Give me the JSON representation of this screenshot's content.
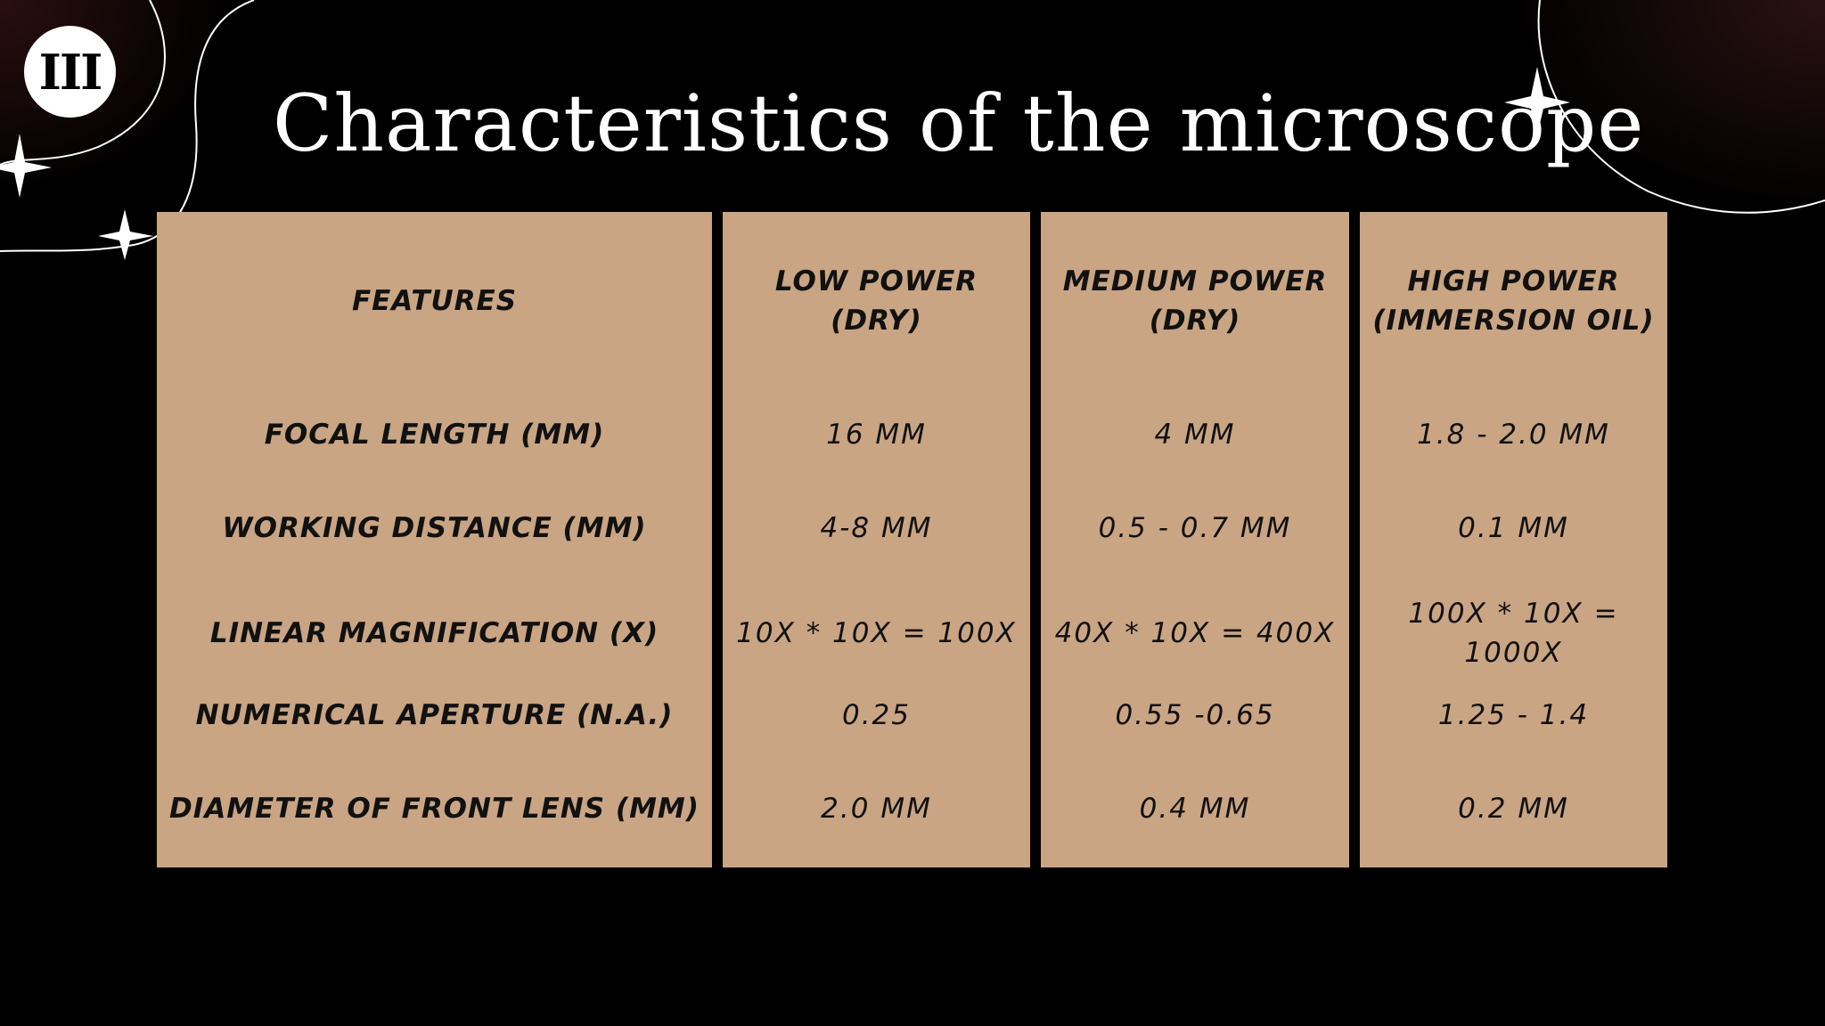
{
  "slide": {
    "section_number": "III",
    "title": "Characteristics of the microscope"
  },
  "table": {
    "headers": [
      "FEATURES",
      "LOW POWER\n(DRY)",
      "MEDIUM POWER\n(DRY)",
      "HIGH POWER\n(IMMERSION OIL)"
    ],
    "rows": [
      {
        "feature": "FOCAL LENGTH (MM)",
        "low": "16 MM",
        "medium": "4 MM",
        "high": "1.8 - 2.0 MM"
      },
      {
        "feature": "WORKING DISTANCE (MM)",
        "low": "4-8 MM",
        "medium": "0.5 - 0.7 MM",
        "high": "0.1 MM"
      },
      {
        "feature": "LINEAR MAGNIFICATION (X)",
        "low": "10X * 10X = 100X",
        "medium": "40X * 10X = 400X",
        "high": "100X * 10X =\n1000X"
      },
      {
        "feature": "NUMERICAL APERTURE (N.A.)",
        "low": "0.25",
        "medium": "0.55 -0.65",
        "high": "1.25 - 1.4"
      },
      {
        "feature": "DIAMETER OF FRONT LENS (MM)",
        "low": "2.0 MM",
        "medium": "0.4 MM",
        "high": "0.2 MM"
      }
    ]
  },
  "colors": {
    "background": "#000000",
    "table_fill": "#c9a584",
    "text_dark": "#111111",
    "title": "#ffffff"
  }
}
